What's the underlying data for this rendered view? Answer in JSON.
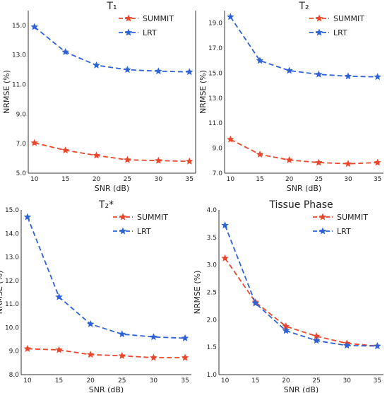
{
  "colors": {
    "summmit": "#e8472b",
    "lrt": "#2d62d6",
    "axis": "#333333"
  },
  "chart_data": [
    {
      "type": "line",
      "title": "T₁",
      "xlabel": "SNR (dB)",
      "ylabel": "NRMSE (%)",
      "x": [
        10,
        15,
        20,
        25,
        30,
        35
      ],
      "xlim": [
        9,
        36
      ],
      "ylim": [
        5.0,
        16.0
      ],
      "yticks": [
        "5.0",
        "7.0",
        "9.0",
        "11.0",
        "13.0",
        "15.0"
      ],
      "legend_position": "top-right",
      "series": [
        {
          "name": "SUMMIT",
          "values": [
            7.05,
            6.55,
            6.2,
            5.9,
            5.85,
            5.8
          ]
        },
        {
          "name": "LRT",
          "values": [
            14.9,
            13.2,
            12.3,
            12.0,
            11.9,
            11.85
          ]
        }
      ]
    },
    {
      "type": "line",
      "title": "T₂",
      "xlabel": "SNR (dB)",
      "ylabel": "NRMSE (%)",
      "x": [
        10,
        15,
        20,
        25,
        30,
        35
      ],
      "xlim": [
        9,
        36
      ],
      "ylim": [
        7.0,
        20.0
      ],
      "yticks": [
        "7.0",
        "9.0",
        "11.0",
        "13.0",
        "15.0",
        "17.0",
        "19.0"
      ],
      "legend_position": "top-right",
      "series": [
        {
          "name": "SUMMIT",
          "values": [
            9.7,
            8.5,
            8.05,
            7.85,
            7.75,
            7.85
          ]
        },
        {
          "name": "LRT",
          "values": [
            19.5,
            16.0,
            15.2,
            14.9,
            14.75,
            14.7
          ]
        }
      ]
    },
    {
      "type": "line",
      "title": "T₂*",
      "xlabel": "SNR (dB)",
      "ylabel": "NRMSE (%)",
      "x": [
        10,
        15,
        20,
        25,
        30,
        35
      ],
      "xlim": [
        9,
        36
      ],
      "ylim": [
        8.0,
        15.0
      ],
      "yticks": [
        "8.0",
        "9.0",
        "10.0",
        "11.0",
        "12.0",
        "13.0",
        "14.0",
        "15.0"
      ],
      "legend_position": "top-right",
      "series": [
        {
          "name": "SUMMIT",
          "values": [
            9.1,
            9.05,
            8.85,
            8.8,
            8.72,
            8.72
          ]
        },
        {
          "name": "LRT",
          "values": [
            14.7,
            11.3,
            10.15,
            9.72,
            9.6,
            9.55
          ]
        }
      ]
    },
    {
      "type": "line",
      "title": "Tissue Phase",
      "xlabel": "SNR (dB)",
      "ylabel": "NRMSE (%)",
      "x": [
        10,
        15,
        20,
        25,
        30,
        35
      ],
      "xlim": [
        9,
        36
      ],
      "ylim": [
        1.0,
        4.0
      ],
      "yticks": [
        "1.0",
        "1.5",
        "2.0",
        "2.5",
        "3.0",
        "3.5",
        "4.0"
      ],
      "legend_position": "top-right",
      "series": [
        {
          "name": "SUMMIT",
          "values": [
            3.12,
            2.32,
            1.88,
            1.7,
            1.57,
            1.52
          ]
        },
        {
          "name": "LRT",
          "values": [
            3.72,
            2.3,
            1.8,
            1.62,
            1.53,
            1.52
          ]
        }
      ]
    }
  ]
}
